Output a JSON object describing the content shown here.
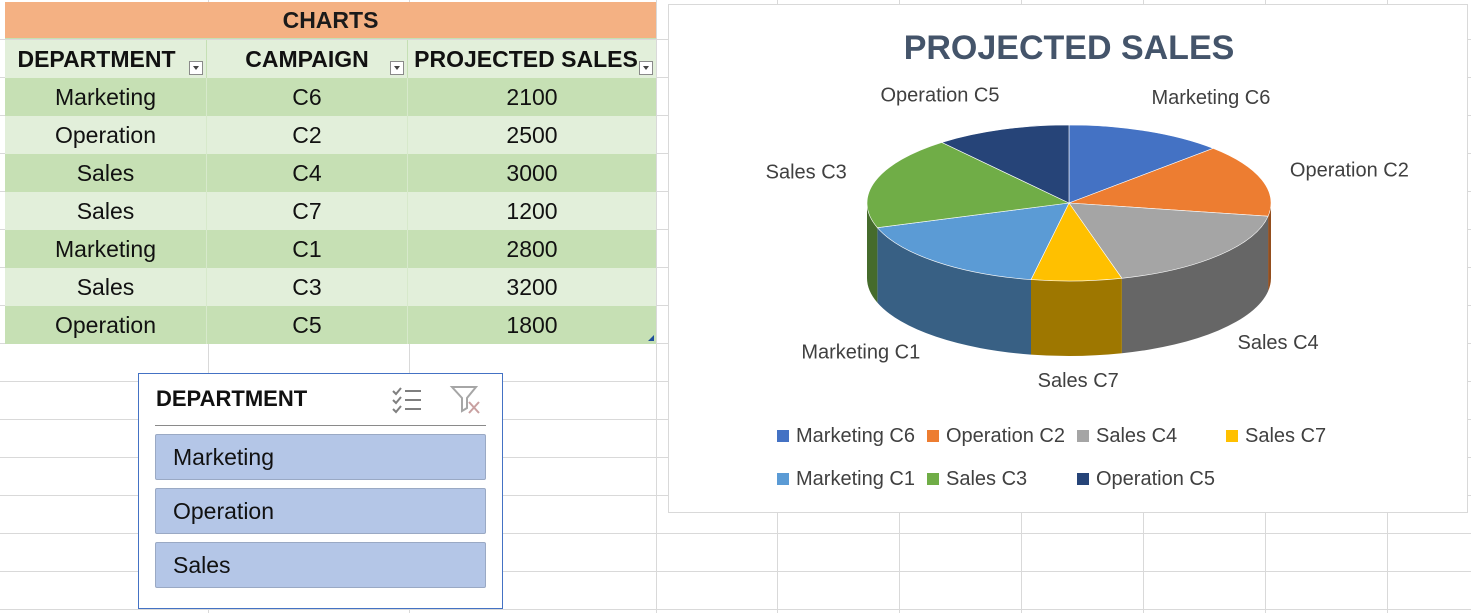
{
  "table": {
    "title": "CHARTS",
    "headers": [
      "DEPARTMENT",
      "CAMPAIGN",
      "PROJECTED SALES"
    ],
    "rows": [
      [
        "Marketing",
        "C6",
        "2100"
      ],
      [
        "Operation",
        "C2",
        "2500"
      ],
      [
        "Sales",
        "C4",
        "3000"
      ],
      [
        "Sales",
        "C7",
        "1200"
      ],
      [
        "Marketing",
        "C1",
        "2800"
      ],
      [
        "Sales",
        "C3",
        "3200"
      ],
      [
        "Operation",
        "C5",
        "1800"
      ]
    ]
  },
  "slicer": {
    "title": "DEPARTMENT",
    "items": [
      "Marketing",
      "Operation",
      "Sales"
    ],
    "multiselect_icon": "multi-select-icon",
    "clear_filter_icon": "clear-filter-icon"
  },
  "chart_data": {
    "type": "pie",
    "title": "PROJECTED SALES",
    "labels": [
      "Marketing C6",
      "Operation C2",
      "Sales C4",
      "Sales C7",
      "Marketing C1",
      "Sales C3",
      "Operation C5"
    ],
    "values": [
      2100,
      2500,
      3000,
      1200,
      2800,
      3200,
      1800
    ],
    "colors": [
      "#4472c4",
      "#ed7d31",
      "#a5a5a5",
      "#ffc000",
      "#5b9bd5",
      "#70ad47",
      "#264478"
    ],
    "legend_position": "bottom",
    "style": "3d"
  }
}
